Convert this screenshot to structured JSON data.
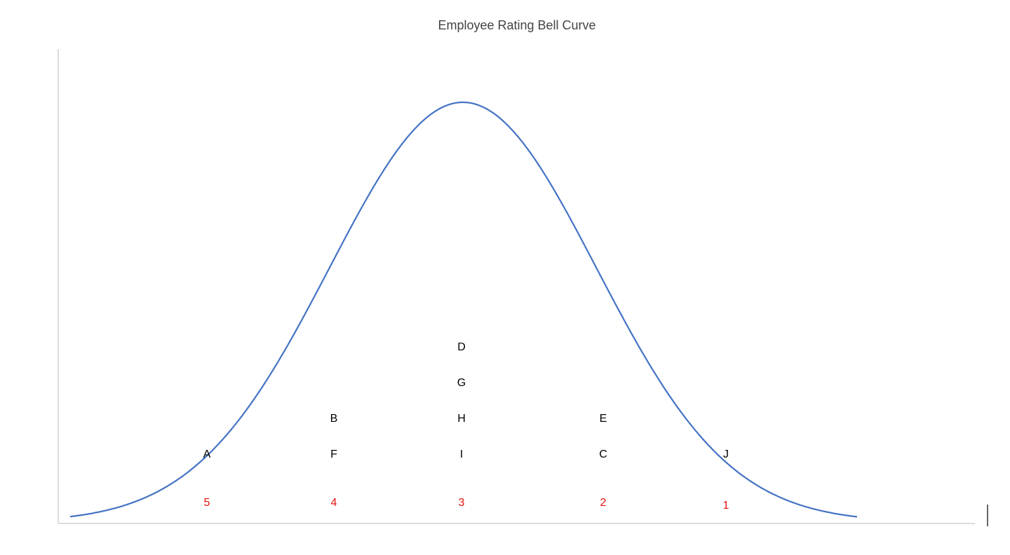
{
  "title": "Employee Rating Bell Curve",
  "columns": [
    {
      "rating": "5",
      "employees": [
        "A"
      ]
    },
    {
      "rating": "4",
      "employees": [
        "B",
        "F"
      ]
    },
    {
      "rating": "3",
      "employees": [
        "D",
        "G",
        "H",
        "I"
      ]
    },
    {
      "rating": "2",
      "employees": [
        "E",
        "C"
      ]
    },
    {
      "rating": "1",
      "employees": [
        "J"
      ]
    }
  ]
}
